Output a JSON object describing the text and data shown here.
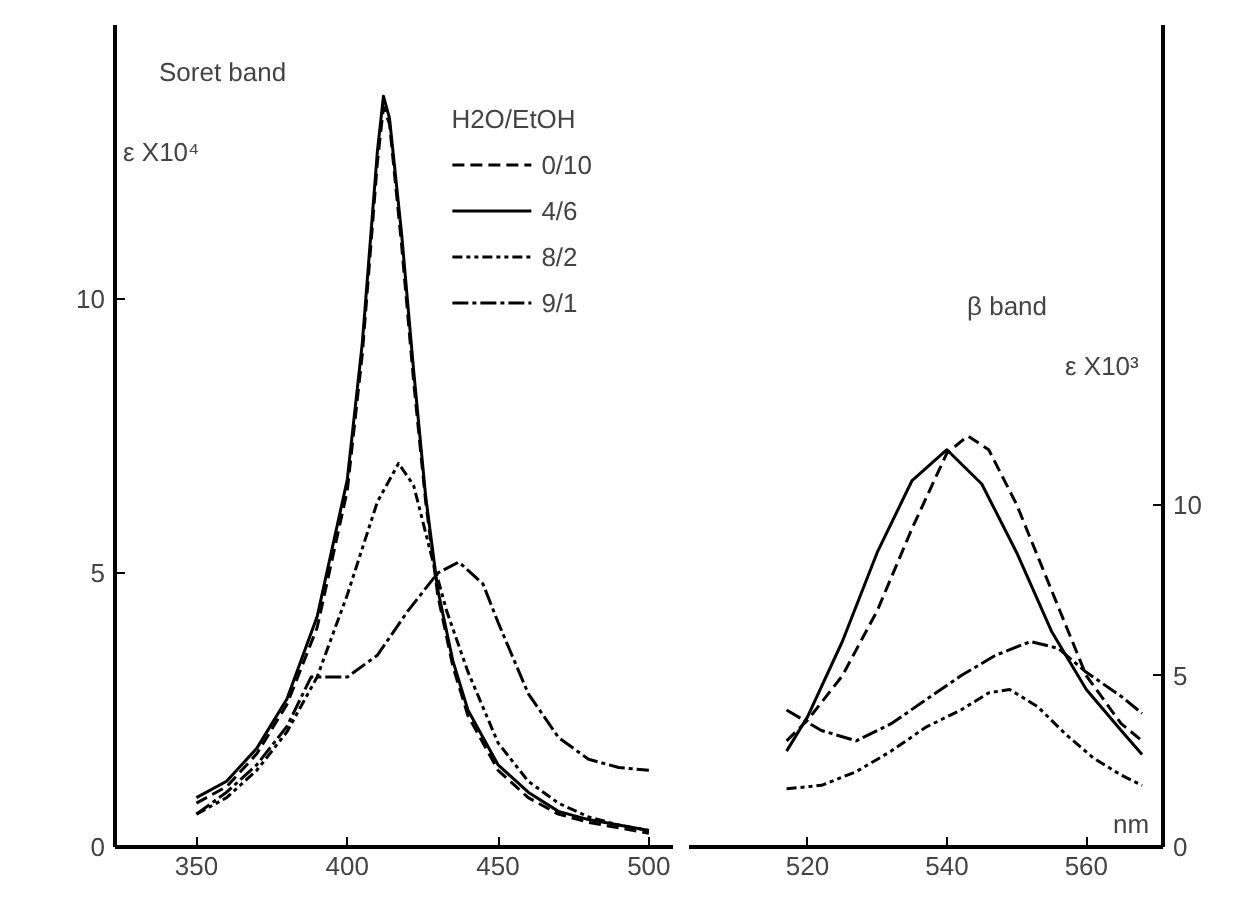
{
  "chart_data": [
    {
      "type": "line",
      "title": "Soret band",
      "ylabel": "ε X10⁴",
      "legend_title": "H2O/EtOH",
      "legend": "top right",
      "xlim": [
        323,
        508
      ],
      "xticks": [
        350,
        400,
        450,
        500
      ],
      "ylim": [
        0,
        15
      ],
      "yticks": [
        0,
        5,
        10
      ],
      "grid": false,
      "series": [
        {
          "name": "0/10",
          "color": "#000000",
          "line_style": "dashed",
          "x": [
            350,
            360,
            370,
            380,
            390,
            400,
            405,
            410,
            412,
            414,
            418,
            422,
            426,
            430,
            435,
            440,
            450,
            460,
            470,
            480,
            490,
            500
          ],
          "values": [
            0.8,
            1.1,
            1.7,
            2.6,
            4.0,
            6.5,
            9.0,
            12.5,
            13.5,
            13.2,
            11.0,
            8.5,
            6.3,
            4.6,
            3.3,
            2.4,
            1.4,
            0.9,
            0.6,
            0.45,
            0.35,
            0.25
          ]
        },
        {
          "name": "4/6",
          "color": "#000000",
          "line_style": "solid",
          "x": [
            350,
            360,
            370,
            380,
            390,
            400,
            405,
            410,
            412,
            414,
            418,
            422,
            426,
            430,
            435,
            440,
            450,
            460,
            470,
            480,
            490,
            500
          ],
          "values": [
            0.9,
            1.2,
            1.8,
            2.7,
            4.2,
            6.7,
            9.2,
            12.7,
            13.7,
            13.3,
            11.2,
            8.7,
            6.4,
            4.7,
            3.4,
            2.5,
            1.5,
            1.0,
            0.65,
            0.5,
            0.4,
            0.3
          ]
        },
        {
          "name": "8/2",
          "color": "#000000",
          "line_style": "dashdotdot",
          "x": [
            350,
            360,
            370,
            380,
            390,
            400,
            410,
            417,
            422,
            428,
            433,
            440,
            450,
            460,
            470,
            480,
            490,
            500
          ],
          "values": [
            0.6,
            0.9,
            1.4,
            2.1,
            3.1,
            4.6,
            6.3,
            7.0,
            6.6,
            5.3,
            4.3,
            3.2,
            1.9,
            1.2,
            0.8,
            0.55,
            0.4,
            0.3
          ]
        },
        {
          "name": "9/1",
          "color": "#000000",
          "line_style": "dashdot",
          "x": [
            350,
            360,
            370,
            380,
            388,
            395,
            400,
            410,
            420,
            430,
            437,
            445,
            450,
            460,
            470,
            480,
            490,
            500
          ],
          "values": [
            0.6,
            1.0,
            1.5,
            2.2,
            3.1,
            3.1,
            3.1,
            3.5,
            4.3,
            5.0,
            5.2,
            4.8,
            4.1,
            2.8,
            2.0,
            1.6,
            1.45,
            1.4
          ]
        }
      ]
    },
    {
      "type": "line",
      "title": "β band",
      "xlabel": "nm",
      "y2label": "ε X10³",
      "xlim": [
        503,
        571
      ],
      "xticks": [
        520,
        540,
        560
      ],
      "y2lim": [
        0,
        24
      ],
      "y2ticks": [
        0,
        5,
        10
      ],
      "grid": false,
      "series": [
        {
          "color": "#000000",
          "line_style": "solid",
          "axis": "y2",
          "x": [
            517,
            520,
            525,
            530,
            535,
            540,
            545,
            550,
            555,
            560,
            565,
            568
          ],
          "values": [
            2.8,
            3.8,
            6.0,
            8.6,
            10.7,
            11.6,
            10.6,
            8.6,
            6.3,
            4.6,
            3.4,
            2.7
          ]
        },
        {
          "color": "#000000",
          "line_style": "dashed",
          "axis": "y2",
          "x": [
            517,
            520,
            525,
            530,
            535,
            540,
            543,
            546,
            550,
            555,
            560,
            565,
            568
          ],
          "values": [
            3.1,
            3.7,
            5.0,
            6.9,
            9.3,
            11.5,
            12.0,
            11.6,
            10.0,
            7.5,
            5.0,
            3.6,
            3.1
          ]
        },
        {
          "color": "#000000",
          "line_style": "dashdotdot",
          "axis": "y2",
          "x": [
            517,
            522,
            527,
            532,
            537,
            542,
            546,
            549,
            553,
            557,
            561,
            565,
            568
          ],
          "values": [
            1.7,
            1.8,
            2.2,
            2.8,
            3.5,
            4.0,
            4.5,
            4.6,
            4.1,
            3.3,
            2.6,
            2.1,
            1.8
          ]
        },
        {
          "color": "#000000",
          "line_style": "dashdot",
          "axis": "y2",
          "x": [
            517,
            522,
            527,
            532,
            537,
            542,
            547,
            552,
            556,
            560,
            565,
            568
          ],
          "values": [
            4.0,
            3.4,
            3.1,
            3.6,
            4.3,
            5.0,
            5.6,
            6.0,
            5.8,
            5.1,
            4.4,
            3.9
          ]
        }
      ]
    }
  ]
}
